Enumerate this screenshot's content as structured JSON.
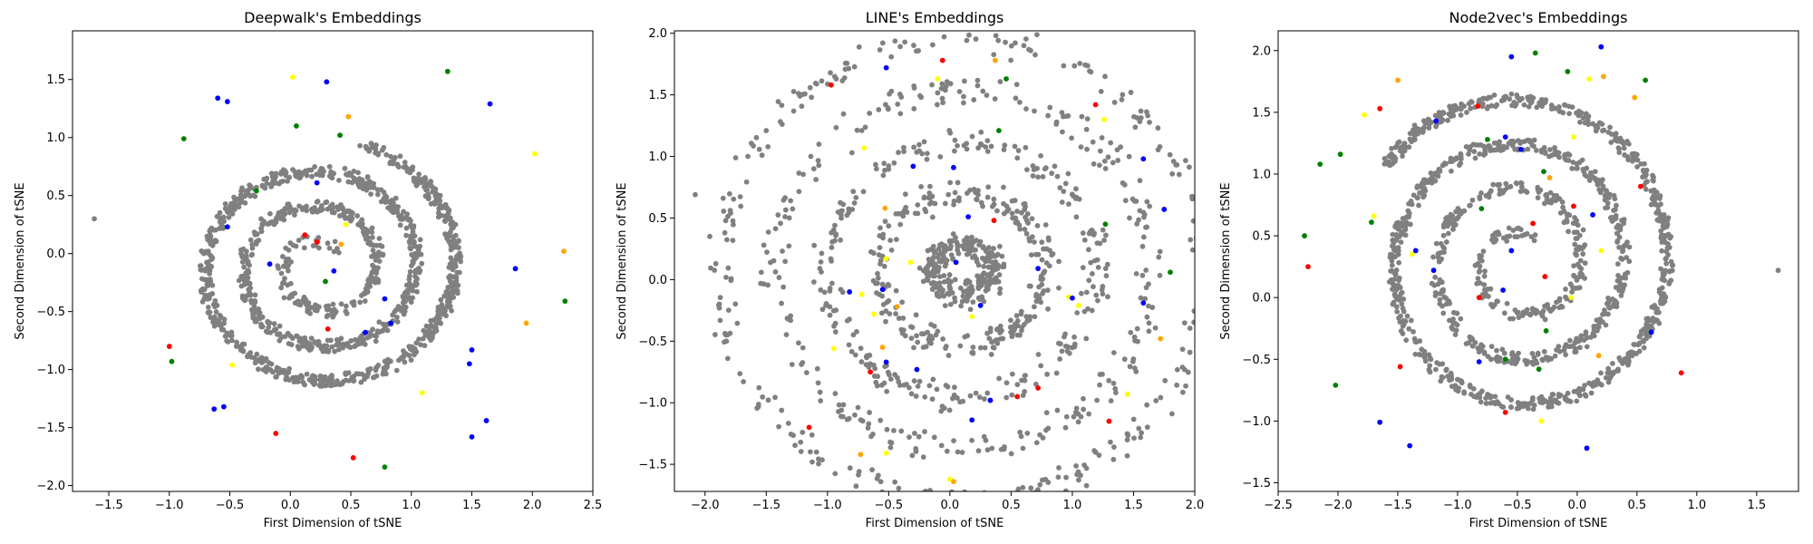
{
  "figure": {
    "background": "#ffffff"
  },
  "colors": {
    "gray": "#808080",
    "blue": "#0000ff",
    "red": "#ff0000",
    "green": "#008000",
    "yellow": "#ffff00",
    "orange": "#ffa500"
  },
  "chart_data": [
    {
      "type": "scatter",
      "title": "Deepwalk's Embeddings",
      "xlabel": "First Dimension of tSNE",
      "ylabel": "Second Dimension of tSNE",
      "xlim": [
        -1.8,
        2.5
      ],
      "ylim": [
        -2.05,
        1.92
      ],
      "xticks": [
        -1.5,
        -1.0,
        -0.5,
        0.0,
        0.5,
        1.0,
        1.5,
        2.0,
        2.5
      ],
      "yticks": [
        -2.0,
        -1.5,
        -1.0,
        -0.5,
        0.0,
        0.5,
        1.0,
        1.5
      ],
      "pattern": {
        "shape": "spiral",
        "cx": 0.25,
        "cy": -0.12,
        "rx0": 0.15,
        "ry0": 0.15,
        "rx_growth": 0.32,
        "ry_growth": 0.3,
        "turns": 3.2,
        "jitter": 0.05,
        "count": 1300,
        "seed": 11,
        "gray_color": "#808080"
      },
      "points": [
        {
          "x": -1.62,
          "y": 0.3,
          "color": "#808080"
        },
        {
          "x": 0.12,
          "y": 0.16,
          "color": "#ff0000"
        },
        {
          "x": 0.22,
          "y": 0.1,
          "color": "#ff0000"
        },
        {
          "x": 0.36,
          "y": -0.15,
          "color": "#0000ff"
        },
        {
          "x": 0.29,
          "y": -0.24,
          "color": "#008000"
        },
        {
          "x": 0.22,
          "y": 0.61,
          "color": "#0000ff"
        },
        {
          "x": 0.41,
          "y": 1.02,
          "color": "#008000"
        },
        {
          "x": 0.48,
          "y": 1.18,
          "color": "#ffa500"
        },
        {
          "x": 0.05,
          "y": 1.1,
          "color": "#008000"
        },
        {
          "x": 0.3,
          "y": 1.48,
          "color": "#0000ff"
        },
        {
          "x": 0.02,
          "y": 1.52,
          "color": "#ffff00"
        },
        {
          "x": -0.52,
          "y": 1.31,
          "color": "#0000ff"
        },
        {
          "x": -0.6,
          "y": 1.34,
          "color": "#0000ff"
        },
        {
          "x": -0.88,
          "y": 0.99,
          "color": "#008000"
        },
        {
          "x": -0.28,
          "y": 0.54,
          "color": "#008000"
        },
        {
          "x": -0.52,
          "y": 0.23,
          "color": "#0000ff"
        },
        {
          "x": -0.17,
          "y": -0.09,
          "color": "#0000ff"
        },
        {
          "x": 0.46,
          "y": 0.25,
          "color": "#ffff00"
        },
        {
          "x": 0.42,
          "y": 0.08,
          "color": "#ffa500"
        },
        {
          "x": 0.78,
          "y": -0.39,
          "color": "#0000ff"
        },
        {
          "x": 0.83,
          "y": -0.6,
          "color": "#0000ff"
        },
        {
          "x": 0.62,
          "y": -0.68,
          "color": "#0000ff"
        },
        {
          "x": 0.31,
          "y": -0.65,
          "color": "#ff0000"
        },
        {
          "x": 1.09,
          "y": -1.2,
          "color": "#ffff00"
        },
        {
          "x": 1.48,
          "y": -0.95,
          "color": "#0000ff"
        },
        {
          "x": 1.5,
          "y": -0.83,
          "color": "#0000ff"
        },
        {
          "x": 1.86,
          "y": -0.13,
          "color": "#0000ff"
        },
        {
          "x": 2.26,
          "y": 0.02,
          "color": "#ffa500"
        },
        {
          "x": 2.27,
          "y": -0.41,
          "color": "#008000"
        },
        {
          "x": 2.02,
          "y": 0.86,
          "color": "#ffff00"
        },
        {
          "x": 1.65,
          "y": 1.29,
          "color": "#0000ff"
        },
        {
          "x": 1.3,
          "y": 1.57,
          "color": "#008000"
        },
        {
          "x": 0.52,
          "y": -1.76,
          "color": "#ff0000"
        },
        {
          "x": 0.78,
          "y": -1.84,
          "color": "#008000"
        },
        {
          "x": -0.12,
          "y": -1.55,
          "color": "#ff0000"
        },
        {
          "x": -0.48,
          "y": -0.96,
          "color": "#ffff00"
        },
        {
          "x": -0.55,
          "y": -1.32,
          "color": "#0000ff"
        },
        {
          "x": -0.63,
          "y": -1.34,
          "color": "#0000ff"
        },
        {
          "x": -1.0,
          "y": -0.8,
          "color": "#ff0000"
        },
        {
          "x": -0.98,
          "y": -0.93,
          "color": "#008000"
        },
        {
          "x": 1.5,
          "y": -1.58,
          "color": "#0000ff"
        },
        {
          "x": 1.62,
          "y": -1.44,
          "color": "#0000ff"
        },
        {
          "x": 1.95,
          "y": -0.6,
          "color": "#ffa500"
        },
        {
          "x": 0.6,
          "y": 0.56,
          "color": "#808080"
        }
      ]
    },
    {
      "type": "scatter",
      "title": "LINE's Embeddings",
      "xlabel": "First Dimension of tSNE",
      "ylabel": "Second Dimension of tSNE",
      "xlim": [
        -2.25,
        2.0
      ],
      "ylim": [
        -1.72,
        2.02
      ],
      "xticks": [
        -2.0,
        -1.5,
        -1.0,
        -0.5,
        0.0,
        0.5,
        1.0,
        1.5,
        2.0
      ],
      "yticks": [
        -1.5,
        -1.0,
        -0.5,
        0.0,
        0.5,
        1.0,
        1.5,
        2.0
      ],
      "pattern": {
        "shape": "rings",
        "cx": 0.1,
        "cy": 0.08,
        "rx0": 0.25,
        "ry0": 0.2,
        "rx_growth": 0.43,
        "ry_growth": 0.42,
        "rings": 4,
        "jitter": 0.06,
        "count": 1300,
        "seed": 23,
        "gray_color": "#808080"
      },
      "points": [
        {
          "x": -2.08,
          "y": 0.69,
          "color": "#808080"
        },
        {
          "x": -1.52,
          "y": 0.28,
          "color": "#808080"
        },
        {
          "x": -0.7,
          "y": 1.07,
          "color": "#ffff00"
        },
        {
          "x": -0.8,
          "y": 1.03,
          "color": "#808080"
        },
        {
          "x": -0.97,
          "y": 1.58,
          "color": "#ff0000"
        },
        {
          "x": -0.52,
          "y": 1.72,
          "color": "#0000ff"
        },
        {
          "x": -0.3,
          "y": 0.92,
          "color": "#0000ff"
        },
        {
          "x": -0.1,
          "y": 1.63,
          "color": "#ffff00"
        },
        {
          "x": -0.06,
          "y": 1.78,
          "color": "#ff0000"
        },
        {
          "x": 0.37,
          "y": 1.78,
          "color": "#ffa500"
        },
        {
          "x": 0.46,
          "y": 1.63,
          "color": "#008000"
        },
        {
          "x": 0.4,
          "y": 1.21,
          "color": "#008000"
        },
        {
          "x": 0.03,
          "y": 0.91,
          "color": "#0000ff"
        },
        {
          "x": 1.19,
          "y": 1.42,
          "color": "#ff0000"
        },
        {
          "x": 1.26,
          "y": 1.3,
          "color": "#ffff00"
        },
        {
          "x": 1.58,
          "y": 0.98,
          "color": "#0000ff"
        },
        {
          "x": -0.53,
          "y": 0.58,
          "color": "#ffa500"
        },
        {
          "x": 0.15,
          "y": 0.51,
          "color": "#0000ff"
        },
        {
          "x": 0.36,
          "y": 0.48,
          "color": "#ff0000"
        },
        {
          "x": 1.75,
          "y": 0.57,
          "color": "#0000ff"
        },
        {
          "x": 1.27,
          "y": 0.45,
          "color": "#008000"
        },
        {
          "x": -0.52,
          "y": 0.17,
          "color": "#ffff00"
        },
        {
          "x": -0.32,
          "y": 0.14,
          "color": "#ffff00"
        },
        {
          "x": 0.05,
          "y": 0.14,
          "color": "#0000ff"
        },
        {
          "x": -0.82,
          "y": -0.1,
          "color": "#0000ff"
        },
        {
          "x": -0.72,
          "y": -0.12,
          "color": "#ffff00"
        },
        {
          "x": -0.55,
          "y": -0.08,
          "color": "#0000ff"
        },
        {
          "x": -0.43,
          "y": -0.22,
          "color": "#ffa500"
        },
        {
          "x": -0.62,
          "y": -0.28,
          "color": "#ffff00"
        },
        {
          "x": 0.25,
          "y": -0.21,
          "color": "#0000ff"
        },
        {
          "x": 0.18,
          "y": -0.3,
          "color": "#ffff00"
        },
        {
          "x": 0.72,
          "y": 0.09,
          "color": "#0000ff"
        },
        {
          "x": 0.97,
          "y": -0.14,
          "color": "#ffff00"
        },
        {
          "x": 1.05,
          "y": -0.21,
          "color": "#ffff00"
        },
        {
          "x": 1.0,
          "y": -0.15,
          "color": "#0000ff"
        },
        {
          "x": 1.58,
          "y": -0.19,
          "color": "#0000ff"
        },
        {
          "x": 1.72,
          "y": -0.48,
          "color": "#ffa500"
        },
        {
          "x": -0.95,
          "y": -0.56,
          "color": "#ffff00"
        },
        {
          "x": -0.52,
          "y": -0.67,
          "color": "#0000ff"
        },
        {
          "x": -0.55,
          "y": -0.55,
          "color": "#ffa500"
        },
        {
          "x": -0.27,
          "y": -0.73,
          "color": "#0000ff"
        },
        {
          "x": -0.65,
          "y": -0.75,
          "color": "#ff0000"
        },
        {
          "x": 0.33,
          "y": -0.98,
          "color": "#0000ff"
        },
        {
          "x": 0.18,
          "y": -1.14,
          "color": "#0000ff"
        },
        {
          "x": 0.72,
          "y": -0.88,
          "color": "#ff0000"
        },
        {
          "x": 0.55,
          "y": -0.95,
          "color": "#ff0000"
        },
        {
          "x": 1.3,
          "y": -1.15,
          "color": "#ff0000"
        },
        {
          "x": 1.45,
          "y": -0.93,
          "color": "#ffff00"
        },
        {
          "x": -1.15,
          "y": -1.2,
          "color": "#ff0000"
        },
        {
          "x": -0.73,
          "y": -1.42,
          "color": "#ffa500"
        },
        {
          "x": -0.52,
          "y": -1.41,
          "color": "#ffff00"
        },
        {
          "x": 0.0,
          "y": -1.62,
          "color": "#ffff00"
        },
        {
          "x": 0.03,
          "y": -1.64,
          "color": "#ffa500"
        },
        {
          "x": 1.8,
          "y": 0.06,
          "color": "#008000"
        }
      ]
    },
    {
      "type": "scatter",
      "title": "Node2vec's Embeddings",
      "xlabel": "First Dimension of tSNE",
      "ylabel": "Second Dimension of tSNE",
      "xlim": [
        -2.5,
        1.85
      ],
      "ylim": [
        -1.57,
        2.16
      ],
      "xticks": [
        -2.5,
        -2.0,
        -1.5,
        -1.0,
        -0.5,
        0.0,
        0.5,
        1.0,
        1.5
      ],
      "yticks": [
        -1.5,
        -1.0,
        -0.5,
        0.0,
        0.5,
        1.0,
        1.5,
        2.0
      ],
      "pattern": {
        "shape": "spiral",
        "cx": -0.48,
        "cy": 0.28,
        "rx0": 0.15,
        "ry0": 0.15,
        "rx_growth": 0.36,
        "ry_growth": 0.36,
        "turns": 3.4,
        "jitter": 0.05,
        "count": 1300,
        "seed": 37,
        "gray_color": "#808080"
      },
      "points": [
        {
          "x": 1.68,
          "y": 0.22,
          "color": "#808080"
        },
        {
          "x": -1.65,
          "y": 1.53,
          "color": "#ff0000"
        },
        {
          "x": -1.78,
          "y": 1.48,
          "color": "#ffff00"
        },
        {
          "x": -1.5,
          "y": 1.76,
          "color": "#ffa500"
        },
        {
          "x": -0.83,
          "y": 1.55,
          "color": "#ff0000"
        },
        {
          "x": -0.55,
          "y": 1.95,
          "color": "#0000ff"
        },
        {
          "x": -0.35,
          "y": 1.98,
          "color": "#008000"
        },
        {
          "x": 0.2,
          "y": 2.03,
          "color": "#0000ff"
        },
        {
          "x": -0.08,
          "y": 1.83,
          "color": "#008000"
        },
        {
          "x": 0.1,
          "y": 1.77,
          "color": "#ffff00"
        },
        {
          "x": 0.22,
          "y": 1.79,
          "color": "#ffa500"
        },
        {
          "x": 0.57,
          "y": 1.76,
          "color": "#008000"
        },
        {
          "x": 0.48,
          "y": 1.62,
          "color": "#ffa500"
        },
        {
          "x": -1.18,
          "y": 1.43,
          "color": "#0000ff"
        },
        {
          "x": -0.75,
          "y": 1.28,
          "color": "#008000"
        },
        {
          "x": -0.6,
          "y": 1.3,
          "color": "#0000ff"
        },
        {
          "x": -0.47,
          "y": 1.2,
          "color": "#0000ff"
        },
        {
          "x": -0.03,
          "y": 1.3,
          "color": "#ffff00"
        },
        {
          "x": -2.15,
          "y": 1.08,
          "color": "#008000"
        },
        {
          "x": -1.98,
          "y": 1.16,
          "color": "#008000"
        },
        {
          "x": -0.28,
          "y": 1.02,
          "color": "#008000"
        },
        {
          "x": -0.23,
          "y": 0.97,
          "color": "#ffa500"
        },
        {
          "x": 0.53,
          "y": 0.9,
          "color": "#ff0000"
        },
        {
          "x": -1.7,
          "y": 0.66,
          "color": "#ffff00"
        },
        {
          "x": -1.72,
          "y": 0.61,
          "color": "#008000"
        },
        {
          "x": -0.8,
          "y": 0.72,
          "color": "#008000"
        },
        {
          "x": -0.37,
          "y": 0.6,
          "color": "#ff0000"
        },
        {
          "x": -0.03,
          "y": 0.74,
          "color": "#ff0000"
        },
        {
          "x": 0.13,
          "y": 0.67,
          "color": "#0000ff"
        },
        {
          "x": -2.25,
          "y": 0.25,
          "color": "#ff0000"
        },
        {
          "x": -2.28,
          "y": 0.5,
          "color": "#008000"
        },
        {
          "x": -1.38,
          "y": 0.35,
          "color": "#ffff00"
        },
        {
          "x": -1.35,
          "y": 0.38,
          "color": "#0000ff"
        },
        {
          "x": -1.2,
          "y": 0.22,
          "color": "#0000ff"
        },
        {
          "x": -0.55,
          "y": 0.38,
          "color": "#0000ff"
        },
        {
          "x": -0.62,
          "y": 0.06,
          "color": "#0000ff"
        },
        {
          "x": 0.2,
          "y": 0.38,
          "color": "#ffff00"
        },
        {
          "x": -0.27,
          "y": 0.17,
          "color": "#ff0000"
        },
        {
          "x": -0.05,
          "y": 0.0,
          "color": "#ffff00"
        },
        {
          "x": -0.82,
          "y": 0.0,
          "color": "#ff0000"
        },
        {
          "x": -0.26,
          "y": -0.27,
          "color": "#008000"
        },
        {
          "x": 0.62,
          "y": -0.28,
          "color": "#0000ff"
        },
        {
          "x": -1.48,
          "y": -0.56,
          "color": "#ff0000"
        },
        {
          "x": -2.02,
          "y": -0.71,
          "color": "#008000"
        },
        {
          "x": -0.82,
          "y": -0.52,
          "color": "#0000ff"
        },
        {
          "x": -0.6,
          "y": -0.5,
          "color": "#008000"
        },
        {
          "x": -0.32,
          "y": -0.58,
          "color": "#008000"
        },
        {
          "x": 0.18,
          "y": -0.47,
          "color": "#ffa500"
        },
        {
          "x": 0.87,
          "y": -0.61,
          "color": "#ff0000"
        },
        {
          "x": -0.6,
          "y": -0.93,
          "color": "#ff0000"
        },
        {
          "x": -1.65,
          "y": -1.01,
          "color": "#0000ff"
        },
        {
          "x": -1.4,
          "y": -1.2,
          "color": "#0000ff"
        },
        {
          "x": -0.3,
          "y": -1.0,
          "color": "#ffff00"
        },
        {
          "x": 0.08,
          "y": -1.22,
          "color": "#0000ff"
        }
      ]
    }
  ]
}
